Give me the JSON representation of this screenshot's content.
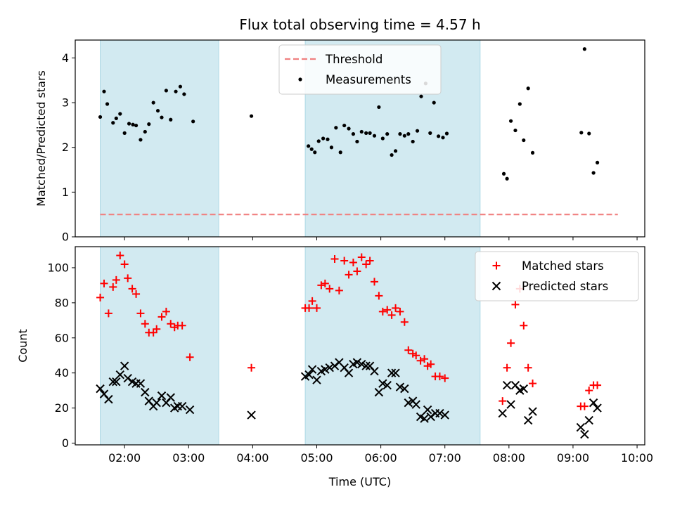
{
  "chart_data": {
    "title": "Flux total observing time = 4.57 h",
    "xlabel": "Time (UTC)",
    "x_ticks": [
      "02:00",
      "03:00",
      "04:00",
      "05:00",
      "06:00",
      "07:00",
      "08:00",
      "09:00",
      "10:00"
    ],
    "x_tick_hours": [
      2,
      3,
      4,
      5,
      6,
      7,
      8,
      9,
      10
    ],
    "xlim": [
      1.23,
      10.12
    ],
    "shaded_intervals": [
      [
        1.62,
        3.47
      ],
      [
        4.82,
        7.55
      ]
    ],
    "shade_color": "#add8e6",
    "panels": [
      {
        "type": "scatter",
        "ylabel": "Matched/Predicted stars",
        "ylim": [
          0,
          4.4
        ],
        "y_ticks": [
          0,
          1,
          2,
          3,
          4
        ],
        "legend_position": "top-center",
        "threshold": {
          "name": "Threshold",
          "y": 0.5,
          "x_range": [
            1.62,
            9.7
          ],
          "color": "#f08080",
          "style": "dashed"
        },
        "series": [
          {
            "name": "Measurements",
            "color": "#000000",
            "marker": "dot",
            "points": [
              [
                1.62,
                2.68
              ],
              [
                1.68,
                3.25
              ],
              [
                1.73,
                2.97
              ],
              [
                1.82,
                2.55
              ],
              [
                1.87,
                2.65
              ],
              [
                1.93,
                2.75
              ],
              [
                2.0,
                2.32
              ],
              [
                2.07,
                2.53
              ],
              [
                2.13,
                2.51
              ],
              [
                2.18,
                2.49
              ],
              [
                2.25,
                2.17
              ],
              [
                2.32,
                2.35
              ],
              [
                2.38,
                2.52
              ],
              [
                2.45,
                3.0
              ],
              [
                2.52,
                2.82
              ],
              [
                2.58,
                2.67
              ],
              [
                2.65,
                3.27
              ],
              [
                2.72,
                2.62
              ],
              [
                2.8,
                3.25
              ],
              [
                2.87,
                3.36
              ],
              [
                2.93,
                3.19
              ],
              [
                3.07,
                2.58
              ],
              [
                3.98,
                2.7
              ],
              [
                4.87,
                2.03
              ],
              [
                4.92,
                1.96
              ],
              [
                4.97,
                1.89
              ],
              [
                5.03,
                2.14
              ],
              [
                5.1,
                2.2
              ],
              [
                5.17,
                2.18
              ],
              [
                5.23,
                2.0
              ],
              [
                5.3,
                2.44
              ],
              [
                5.37,
                1.89
              ],
              [
                5.43,
                2.49
              ],
              [
                5.5,
                2.42
              ],
              [
                5.57,
                2.3
              ],
              [
                5.63,
                2.13
              ],
              [
                5.7,
                2.35
              ],
              [
                5.77,
                2.32
              ],
              [
                5.83,
                2.32
              ],
              [
                5.9,
                2.26
              ],
              [
                5.97,
                2.9
              ],
              [
                6.03,
                2.2
              ],
              [
                6.1,
                2.3
              ],
              [
                6.17,
                1.83
              ],
              [
                6.23,
                1.92
              ],
              [
                6.3,
                2.3
              ],
              [
                6.37,
                2.26
              ],
              [
                6.43,
                2.3
              ],
              [
                6.5,
                2.13
              ],
              [
                6.57,
                2.37
              ],
              [
                6.63,
                3.14
              ],
              [
                6.7,
                3.43
              ],
              [
                6.77,
                2.32
              ],
              [
                6.83,
                3.0
              ],
              [
                6.9,
                2.25
              ],
              [
                6.97,
                2.22
              ],
              [
                7.03,
                2.31
              ],
              [
                7.92,
                1.41
              ],
              [
                7.97,
                1.3
              ],
              [
                8.03,
                2.59
              ],
              [
                8.1,
                2.38
              ],
              [
                8.17,
                2.97
              ],
              [
                8.23,
                2.16
              ],
              [
                8.3,
                3.32
              ],
              [
                8.37,
                1.88
              ],
              [
                9.13,
                2.33
              ],
              [
                9.18,
                4.2
              ],
              [
                9.25,
                2.31
              ],
              [
                9.32,
                1.43
              ],
              [
                9.38,
                1.66
              ]
            ]
          }
        ]
      },
      {
        "type": "scatter",
        "ylabel": "Count",
        "ylim": [
          -1,
          112
        ],
        "y_ticks": [
          0,
          20,
          40,
          60,
          80,
          100
        ],
        "legend_position": "top-right",
        "series": [
          {
            "name": "Matched stars",
            "color": "#ff0000",
            "marker": "plus",
            "points": [
              [
                1.62,
                83
              ],
              [
                1.68,
                91
              ],
              [
                1.75,
                74
              ],
              [
                1.82,
                89
              ],
              [
                1.87,
                93
              ],
              [
                1.93,
                107
              ],
              [
                2.0,
                102
              ],
              [
                2.05,
                94
              ],
              [
                2.12,
                88
              ],
              [
                2.18,
                85
              ],
              [
                2.25,
                74
              ],
              [
                2.32,
                68
              ],
              [
                2.38,
                63
              ],
              [
                2.45,
                63
              ],
              [
                2.5,
                65
              ],
              [
                2.58,
                72
              ],
              [
                2.65,
                75
              ],
              [
                2.72,
                68
              ],
              [
                2.78,
                66
              ],
              [
                2.83,
                67
              ],
              [
                2.9,
                67
              ],
              [
                3.02,
                49
              ],
              [
                3.98,
                43
              ],
              [
                4.82,
                77
              ],
              [
                4.88,
                77
              ],
              [
                4.93,
                81
              ],
              [
                5.0,
                77
              ],
              [
                5.07,
                90
              ],
              [
                5.13,
                91
              ],
              [
                5.2,
                88
              ],
              [
                5.28,
                105
              ],
              [
                5.35,
                87
              ],
              [
                5.43,
                104
              ],
              [
                5.5,
                96
              ],
              [
                5.57,
                103
              ],
              [
                5.63,
                98
              ],
              [
                5.7,
                106
              ],
              [
                5.77,
                102
              ],
              [
                5.83,
                104
              ],
              [
                5.9,
                92
              ],
              [
                5.97,
                84
              ],
              [
                6.03,
                75
              ],
              [
                6.1,
                76
              ],
              [
                6.17,
                73
              ],
              [
                6.23,
                77
              ],
              [
                6.3,
                75
              ],
              [
                6.37,
                69
              ],
              [
                6.43,
                53
              ],
              [
                6.5,
                51
              ],
              [
                6.55,
                50
              ],
              [
                6.62,
                47
              ],
              [
                6.68,
                48
              ],
              [
                6.73,
                44
              ],
              [
                6.78,
                45
              ],
              [
                6.85,
                38
              ],
              [
                6.92,
                38
              ],
              [
                7.0,
                37
              ],
              [
                7.9,
                24
              ],
              [
                7.97,
                43
              ],
              [
                8.03,
                57
              ],
              [
                8.1,
                79
              ],
              [
                8.17,
                88
              ],
              [
                8.23,
                67
              ],
              [
                8.3,
                43
              ],
              [
                8.37,
                34
              ],
              [
                9.12,
                21
              ],
              [
                9.18,
                21
              ],
              [
                9.25,
                30
              ],
              [
                9.32,
                33
              ],
              [
                9.38,
                33
              ]
            ]
          },
          {
            "name": "Predicted stars",
            "color": "#000000",
            "marker": "x",
            "points": [
              [
                1.62,
                31
              ],
              [
                1.68,
                28
              ],
              [
                1.75,
                25
              ],
              [
                1.82,
                35
              ],
              [
                1.87,
                35
              ],
              [
                1.93,
                39
              ],
              [
                2.0,
                44
              ],
              [
                2.05,
                37
              ],
              [
                2.12,
                35
              ],
              [
                2.18,
                34
              ],
              [
                2.25,
                34
              ],
              [
                2.32,
                29
              ],
              [
                2.38,
                24
              ],
              [
                2.45,
                21
              ],
              [
                2.5,
                23
              ],
              [
                2.58,
                27
              ],
              [
                2.65,
                23
              ],
              [
                2.72,
                26
              ],
              [
                2.78,
                20
              ],
              [
                2.83,
                21
              ],
              [
                2.9,
                21
              ],
              [
                3.02,
                19
              ],
              [
                3.98,
                16
              ],
              [
                4.82,
                38
              ],
              [
                4.88,
                39
              ],
              [
                4.93,
                42
              ],
              [
                5.0,
                36
              ],
              [
                5.07,
                41
              ],
              [
                5.13,
                42
              ],
              [
                5.2,
                43
              ],
              [
                5.28,
                44
              ],
              [
                5.35,
                46
              ],
              [
                5.43,
                43
              ],
              [
                5.5,
                40
              ],
              [
                5.57,
                45
              ],
              [
                5.63,
                46
              ],
              [
                5.7,
                45
              ],
              [
                5.77,
                44
              ],
              [
                5.83,
                44
              ],
              [
                5.9,
                41
              ],
              [
                5.97,
                29
              ],
              [
                6.03,
                34
              ],
              [
                6.1,
                33
              ],
              [
                6.17,
                40
              ],
              [
                6.23,
                40
              ],
              [
                6.3,
                32
              ],
              [
                6.37,
                31
              ],
              [
                6.43,
                23
              ],
              [
                6.5,
                24
              ],
              [
                6.55,
                22
              ],
              [
                6.62,
                15
              ],
              [
                6.68,
                14
              ],
              [
                6.73,
                19
              ],
              [
                6.78,
                15
              ],
              [
                6.85,
                17
              ],
              [
                6.92,
                17
              ],
              [
                7.0,
                16
              ],
              [
                7.9,
                17
              ],
              [
                7.97,
                33
              ],
              [
                8.03,
                22
              ],
              [
                8.1,
                33
              ],
              [
                8.17,
                30
              ],
              [
                8.23,
                31
              ],
              [
                8.3,
                13
              ],
              [
                8.37,
                18
              ],
              [
                9.12,
                9
              ],
              [
                9.18,
                5
              ],
              [
                9.25,
                13
              ],
              [
                9.32,
                23
              ],
              [
                9.38,
                20
              ]
            ]
          }
        ]
      }
    ]
  }
}
